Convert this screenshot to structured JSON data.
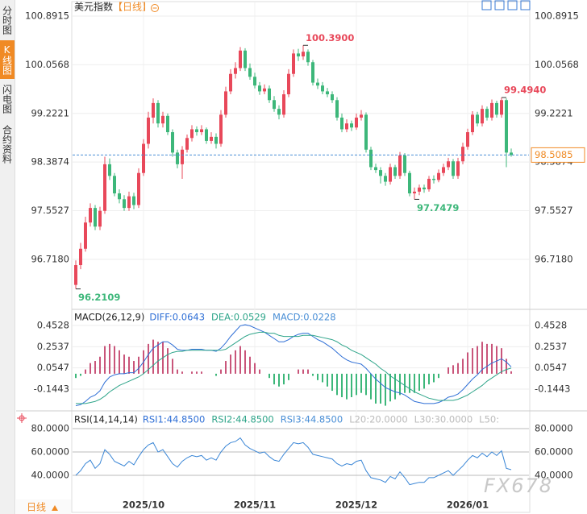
{
  "sidebar": {
    "tabs": [
      "分时图",
      "K线图",
      "闪电图",
      "合约资料"
    ],
    "active_tab": "K线图"
  },
  "header": {
    "symbol": "美元指数",
    "period": "【日线】"
  },
  "footer": {
    "period": "日线"
  },
  "watermark": "FX678",
  "chart_data": [
    {
      "type": "candlestick",
      "categories": [
        null,
        null,
        null,
        null,
        null,
        null,
        null,
        null,
        null,
        null,
        null,
        null,
        null,
        null,
        "2025/10",
        null,
        null,
        null,
        null,
        null,
        null,
        null,
        null,
        null,
        null,
        null,
        null,
        null,
        null,
        null,
        null,
        null,
        null,
        null,
        null,
        null,
        null,
        "2025/11",
        null,
        null,
        null,
        null,
        null,
        null,
        null,
        null,
        null,
        null,
        null,
        null,
        null,
        null,
        null,
        null,
        null,
        null,
        null,
        null,
        "2025/12",
        null,
        null,
        null,
        null,
        null,
        null,
        null,
        null,
        null,
        null,
        null,
        null,
        null,
        null,
        null,
        null,
        null,
        null,
        null,
        null,
        null,
        null,
        "2026/01",
        null,
        null,
        null,
        null,
        null,
        null,
        null,
        null,
        null
      ],
      "ohlc": [
        [
          96.28,
          96.7,
          96.2109,
          96.62
        ],
        [
          96.62,
          97.0,
          96.55,
          96.9
        ],
        [
          96.9,
          97.45,
          96.85,
          97.35
        ],
        [
          97.35,
          97.68,
          97.28,
          97.6
        ],
        [
          97.6,
          97.65,
          97.22,
          97.28
        ],
        [
          97.28,
          97.62,
          97.22,
          97.55
        ],
        [
          97.55,
          98.48,
          97.5,
          98.35
        ],
        [
          98.35,
          98.45,
          98.08,
          98.15
        ],
        [
          98.15,
          98.2,
          97.8,
          97.85
        ],
        [
          97.85,
          97.92,
          97.68,
          97.75
        ],
        [
          97.75,
          97.82,
          97.55,
          97.6
        ],
        [
          97.6,
          97.88,
          97.55,
          97.8
        ],
        [
          97.8,
          97.86,
          97.58,
          97.65
        ],
        [
          97.65,
          98.28,
          97.6,
          98.2
        ],
        [
          98.2,
          98.78,
          98.15,
          98.7
        ],
        [
          98.7,
          99.25,
          98.62,
          99.15
        ],
        [
          99.15,
          99.48,
          99.05,
          99.4
        ],
        [
          99.4,
          99.45,
          98.98,
          99.05
        ],
        [
          99.05,
          99.25,
          98.98,
          99.18
        ],
        [
          99.18,
          99.22,
          98.85,
          98.9
        ],
        [
          98.9,
          98.95,
          98.48,
          98.55
        ],
        [
          98.55,
          98.6,
          98.28,
          98.35
        ],
        [
          98.35,
          98.66,
          98.1,
          98.6
        ],
        [
          98.6,
          98.86,
          98.55,
          98.8
        ],
        [
          98.8,
          99.02,
          98.74,
          98.95
        ],
        [
          98.95,
          99.0,
          98.84,
          98.9
        ],
        [
          98.9,
          99.02,
          98.85,
          98.95
        ],
        [
          98.95,
          98.98,
          98.7,
          98.75
        ],
        [
          98.75,
          98.9,
          98.7,
          98.82
        ],
        [
          98.82,
          98.88,
          98.62,
          98.7
        ],
        [
          98.7,
          99.28,
          98.65,
          99.2
        ],
        [
          99.2,
          99.68,
          99.15,
          99.6
        ],
        [
          99.6,
          99.98,
          99.55,
          99.9
        ],
        [
          99.9,
          100.1,
          99.82,
          100.0
        ],
        [
          100.0,
          100.36,
          99.95,
          100.3
        ],
        [
          100.3,
          100.34,
          99.95,
          100.0
        ],
        [
          100.0,
          100.08,
          99.8,
          99.85
        ],
        [
          99.85,
          99.92,
          99.65,
          99.7
        ],
        [
          99.7,
          99.76,
          99.54,
          99.6
        ],
        [
          99.6,
          99.72,
          99.55,
          99.65
        ],
        [
          99.65,
          99.7,
          99.4,
          99.45
        ],
        [
          99.45,
          99.52,
          99.25,
          99.3
        ],
        [
          99.3,
          99.36,
          99.12,
          99.2
        ],
        [
          99.2,
          99.62,
          99.15,
          99.55
        ],
        [
          99.55,
          99.98,
          99.5,
          99.9
        ],
        [
          99.9,
          100.32,
          99.85,
          100.25
        ],
        [
          100.25,
          100.33,
          100.12,
          100.2
        ],
        [
          100.2,
          100.39,
          100.14,
          100.28
        ],
        [
          100.28,
          100.32,
          100.04,
          100.1
        ],
        [
          100.1,
          100.14,
          99.7,
          99.75
        ],
        [
          99.75,
          99.82,
          99.64,
          99.7
        ],
        [
          99.7,
          99.76,
          99.55,
          99.6
        ],
        [
          99.6,
          99.66,
          99.5,
          99.55
        ],
        [
          99.55,
          99.6,
          99.4,
          99.45
        ],
        [
          99.45,
          99.5,
          99.1,
          99.15
        ],
        [
          99.15,
          99.22,
          98.9,
          98.95
        ],
        [
          98.95,
          99.12,
          98.9,
          99.05
        ],
        [
          99.05,
          99.1,
          98.92,
          98.98
        ],
        [
          98.98,
          99.22,
          98.94,
          99.15
        ],
        [
          99.15,
          99.28,
          99.1,
          99.2
        ],
        [
          99.2,
          99.24,
          98.55,
          98.6
        ],
        [
          98.6,
          98.65,
          98.25,
          98.3
        ],
        [
          98.3,
          98.36,
          98.2,
          98.25
        ],
        [
          98.25,
          98.3,
          98.02,
          98.15
        ],
        [
          98.15,
          98.2,
          97.98,
          98.05
        ],
        [
          98.05,
          98.36,
          98.0,
          98.3
        ],
        [
          98.3,
          98.34,
          98.1,
          98.15
        ],
        [
          98.15,
          98.56,
          98.1,
          98.5
        ],
        [
          98.5,
          98.54,
          98.15,
          98.2
        ],
        [
          98.2,
          98.24,
          97.8,
          97.85
        ],
        [
          97.85,
          97.95,
          97.7479,
          97.88
        ],
        [
          97.88,
          98.0,
          97.82,
          97.95
        ],
        [
          97.95,
          98.0,
          97.86,
          97.92
        ],
        [
          97.92,
          98.15,
          97.88,
          98.1
        ],
        [
          98.1,
          98.16,
          98.02,
          98.08
        ],
        [
          98.08,
          98.26,
          98.04,
          98.2
        ],
        [
          98.2,
          98.36,
          98.15,
          98.3
        ],
        [
          98.3,
          98.46,
          98.25,
          98.4
        ],
        [
          98.4,
          98.44,
          98.1,
          98.15
        ],
        [
          98.15,
          98.46,
          98.1,
          98.4
        ],
        [
          98.4,
          98.72,
          98.35,
          98.65
        ],
        [
          98.65,
          98.96,
          98.6,
          98.9
        ],
        [
          98.9,
          99.26,
          98.85,
          99.2
        ],
        [
          99.2,
          99.25,
          99.0,
          99.05
        ],
        [
          99.05,
          99.36,
          99.0,
          99.3
        ],
        [
          99.3,
          99.34,
          99.1,
          99.15
        ],
        [
          99.15,
          99.46,
          99.1,
          99.4
        ],
        [
          99.4,
          99.44,
          99.15,
          99.2
        ],
        [
          99.2,
          99.494,
          99.15,
          99.45
        ],
        [
          99.45,
          99.48,
          98.3,
          98.55
        ],
        [
          98.55,
          98.62,
          98.48,
          98.5085
        ]
      ],
      "up_color": "#e8485a",
      "down_color": "#3db77a",
      "ylim": [
        95.874,
        101.057
      ],
      "yticks": [
        {
          "value": 96.718,
          "label": "96.7180"
        },
        97.5527,
        98.3874,
        99.2221,
        100.0568,
        100.8915
      ],
      "grid": true,
      "last_price": {
        "value": 98.5085,
        "label": "98.5085",
        "color": "#f08a24",
        "line_color": "#4a8fd6"
      },
      "annotations": [
        {
          "value": 96.2109,
          "label": "96.2109",
          "color": "#3db77a"
        },
        {
          "value": 100.39,
          "label": "100.3900",
          "color": "#e8485a"
        },
        {
          "value": 97.7479,
          "label": "97.7479",
          "color": "#3db77a"
        },
        {
          "value": 99.494,
          "label": "99.4940",
          "color": "#e8485a"
        }
      ]
    },
    {
      "type": "macd",
      "title": "MACD(26,12,9)",
      "readings": [
        {
          "text": "DIFF:0.0643",
          "color": "#2f6fd6"
        },
        {
          "text": "DEA:0.0529",
          "color": "#2fa58a"
        },
        {
          "text": "MACD:0.0228",
          "color": "#4a8fd6"
        }
      ],
      "series": [
        {
          "color": "#2f6fd6",
          "values": [
            -0.3,
            -0.29,
            -0.26,
            -0.22,
            -0.2,
            -0.16,
            -0.08,
            -0.03,
            -0.01,
            0.0,
            0.0,
            0.01,
            0.01,
            0.05,
            0.11,
            0.18,
            0.24,
            0.27,
            0.3,
            0.3,
            0.27,
            0.23,
            0.22,
            0.22,
            0.23,
            0.23,
            0.23,
            0.22,
            0.22,
            0.21,
            0.24,
            0.29,
            0.35,
            0.4,
            0.45,
            0.46,
            0.45,
            0.43,
            0.41,
            0.39,
            0.36,
            0.33,
            0.3,
            0.3,
            0.32,
            0.35,
            0.37,
            0.38,
            0.38,
            0.35,
            0.32,
            0.3,
            0.27,
            0.24,
            0.2,
            0.16,
            0.13,
            0.11,
            0.1,
            0.09,
            0.05,
            0.0,
            -0.05,
            -0.09,
            -0.13,
            -0.15,
            -0.17,
            -0.18,
            -0.2,
            -0.23,
            -0.26,
            -0.27,
            -0.28,
            -0.28,
            -0.28,
            -0.27,
            -0.25,
            -0.22,
            -0.21,
            -0.19,
            -0.15,
            -0.1,
            -0.05,
            -0.01,
            0.04,
            0.07,
            0.1,
            0.12,
            0.14,
            0.11,
            0.0643
          ]
        },
        {
          "color": "#2fa58a",
          "values": [
            -0.28,
            -0.28,
            -0.28,
            -0.27,
            -0.26,
            -0.24,
            -0.21,
            -0.17,
            -0.14,
            -0.11,
            -0.09,
            -0.07,
            -0.05,
            -0.03,
            0.0,
            0.04,
            0.08,
            0.12,
            0.15,
            0.18,
            0.2,
            0.21,
            0.21,
            0.22,
            0.22,
            0.22,
            0.22,
            0.22,
            0.22,
            0.22,
            0.22,
            0.23,
            0.26,
            0.29,
            0.32,
            0.35,
            0.37,
            0.38,
            0.39,
            0.39,
            0.38,
            0.38,
            0.36,
            0.35,
            0.35,
            0.35,
            0.35,
            0.36,
            0.36,
            0.36,
            0.35,
            0.34,
            0.33,
            0.32,
            0.3,
            0.27,
            0.25,
            0.22,
            0.2,
            0.18,
            0.15,
            0.12,
            0.09,
            0.05,
            0.02,
            -0.02,
            -0.05,
            -0.08,
            -0.11,
            -0.14,
            -0.17,
            -0.19,
            -0.21,
            -0.23,
            -0.24,
            -0.25,
            -0.25,
            -0.25,
            -0.25,
            -0.24,
            -0.22,
            -0.2,
            -0.17,
            -0.14,
            -0.11,
            -0.07,
            -0.04,
            -0.01,
            0.02,
            0.04,
            0.0529
          ]
        }
      ],
      "histogram": {
        "up_color": "#c9557a",
        "down_color": "#3db77a",
        "values": [
          -0.04,
          -0.02,
          0.04,
          0.1,
          0.12,
          0.16,
          0.26,
          0.28,
          0.26,
          0.22,
          0.18,
          0.16,
          0.12,
          0.16,
          0.22,
          0.28,
          0.32,
          0.3,
          0.3,
          0.24,
          0.14,
          0.04,
          0.02,
          0.0,
          0.02,
          0.02,
          0.02,
          0.0,
          0.0,
          -0.02,
          0.04,
          0.12,
          0.18,
          0.22,
          0.26,
          0.22,
          0.16,
          0.1,
          0.04,
          0.0,
          -0.04,
          -0.1,
          -0.12,
          -0.1,
          -0.06,
          0.0,
          0.04,
          0.04,
          0.04,
          -0.02,
          -0.06,
          -0.08,
          -0.12,
          -0.16,
          -0.2,
          -0.22,
          -0.24,
          -0.22,
          -0.2,
          -0.18,
          -0.2,
          -0.24,
          -0.28,
          -0.28,
          -0.3,
          -0.26,
          -0.24,
          -0.2,
          -0.18,
          -0.18,
          -0.18,
          -0.16,
          -0.14,
          -0.1,
          -0.08,
          -0.04,
          0.0,
          0.06,
          0.08,
          0.1,
          0.14,
          0.2,
          0.24,
          0.26,
          0.3,
          0.28,
          0.28,
          0.26,
          0.24,
          0.14,
          0.0228
        ]
      },
      "ylim": [
        -0.3335,
        0.574
      ],
      "yticks": [
        -0.1443,
        0.0547,
        0.2537,
        0.4528
      ]
    },
    {
      "type": "rsi",
      "title": "RSI(14,14,14)",
      "readings": [
        {
          "text": "RSI1:44.8500",
          "color": "#2f6fd6"
        },
        {
          "text": "RSI2:44.8500",
          "color": "#2fa58a"
        },
        {
          "text": "RSI3:44.8500",
          "color": "#4a8fd6"
        },
        {
          "text": "L20:20.0000",
          "color": "#bbbbbb"
        },
        {
          "text": "L30:30.0000",
          "color": "#bbbbbb"
        },
        {
          "text": "L50:",
          "color": "#bbbbbb"
        }
      ],
      "series": [
        {
          "color": "#3a86d6",
          "values": [
            40,
            44,
            50,
            53,
            46,
            50,
            62,
            58,
            52,
            50,
            48,
            52,
            49,
            56,
            62,
            66,
            68,
            60,
            62,
            56,
            50,
            47,
            52,
            55,
            57,
            56,
            57,
            53,
            55,
            53,
            60,
            65,
            68,
            69,
            72,
            66,
            63,
            61,
            59,
            60,
            56,
            53,
            52,
            58,
            63,
            68,
            67,
            68,
            64,
            58,
            57,
            56,
            55,
            54,
            50,
            48,
            50,
            49,
            52,
            53,
            44,
            38,
            37,
            36,
            34,
            39,
            37,
            43,
            38,
            32,
            33,
            34,
            34,
            38,
            38,
            40,
            42,
            44,
            40,
            44,
            48,
            53,
            57,
            55,
            59,
            56,
            60,
            57,
            61,
            46,
            44.85
          ]
        }
      ],
      "ylim": [
        12.4,
        88.3
      ],
      "yticks": [
        {
          "value": 40,
          "label": "40.0000"
        },
        {
          "value": 60,
          "label": "60.0000"
        },
        {
          "value": 80,
          "label": "80.0000"
        }
      ]
    }
  ]
}
